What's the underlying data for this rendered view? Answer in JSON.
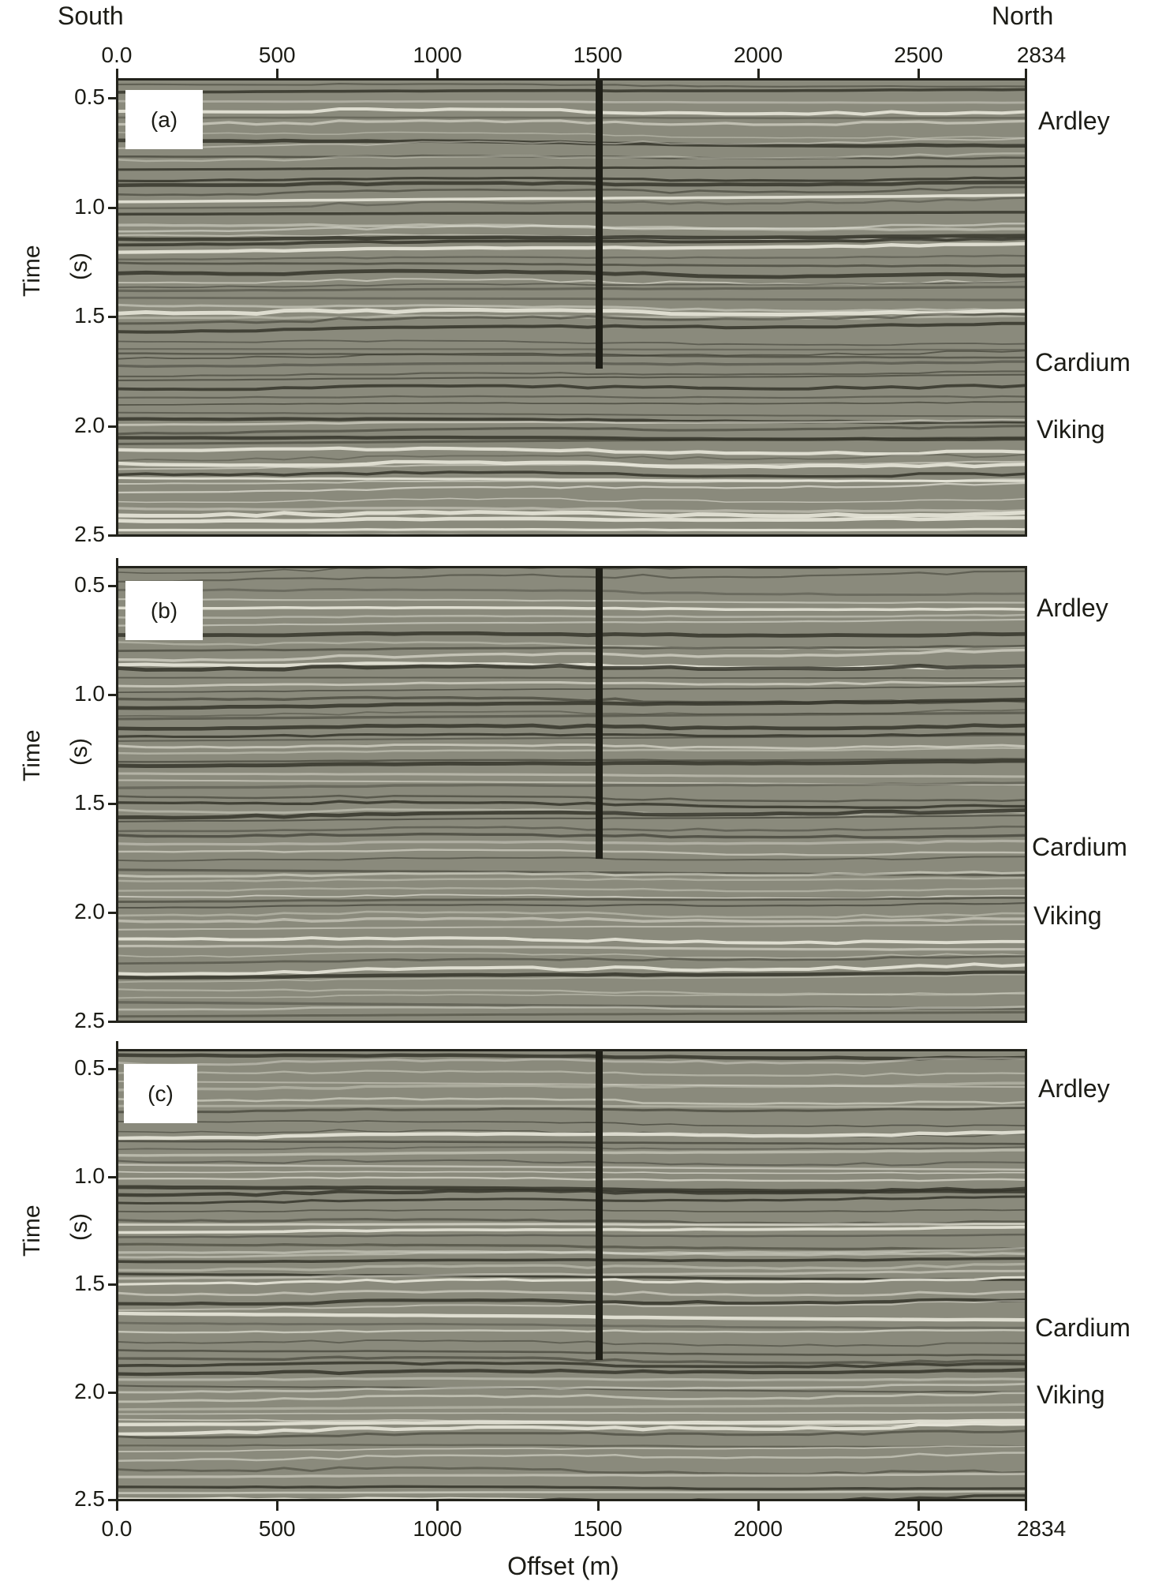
{
  "figure": {
    "direction_left": "South",
    "direction_right": "North",
    "x_axis_title": "Offset (m)",
    "y_axis_title_word": "Time",
    "y_axis_title_unit": "(s)",
    "x_ticks": [
      "0.0",
      "500",
      "1000",
      "1500",
      "2000",
      "2500",
      "2834"
    ],
    "y_ticks": [
      "0.5",
      "1.0",
      "1.5",
      "2.0",
      "2.5"
    ],
    "colors": {
      "seismic_mid": "#8a8a7c",
      "seismic_dark": "#35352b",
      "seismic_light": "#ecebdf",
      "frame": "#23231c",
      "well_line": "#1e1e17"
    }
  },
  "panels": [
    {
      "tag": "(a)",
      "horizons": [
        "Ardley",
        "Cardium",
        "Viking"
      ]
    },
    {
      "tag": "(b)",
      "horizons": [
        "Ardley",
        "Cardium",
        "Viking"
      ]
    },
    {
      "tag": "(c)",
      "horizons": [
        "Ardley",
        "Cardium",
        "Viking"
      ]
    }
  ],
  "chart_data": [
    {
      "type": "heatmap",
      "title": "(a)",
      "description": "Seismic section (variable-density gray), offset vs two-way time",
      "xlabel": "Offset (m)",
      "ylabel": "Time (s)",
      "x_ticks": [
        0,
        500,
        1000,
        1500,
        2000,
        2500,
        2834
      ],
      "y_ticks": [
        0.5,
        1.0,
        1.5,
        2.0,
        2.5
      ],
      "xlim": [
        0,
        2834
      ],
      "ylim": [
        2.5,
        0.45
      ],
      "annotations": [
        {
          "type": "vertical_line",
          "x": 1500,
          "y_from": 0.45,
          "y_to": 1.73,
          "label": "well"
        },
        {
          "type": "horizon_label",
          "text": "Ardley",
          "time": 0.62
        },
        {
          "type": "horizon_label",
          "text": "Cardium",
          "time": 1.73
        },
        {
          "type": "horizon_label",
          "text": "Viking",
          "time": 2.01
        }
      ],
      "top_labels": {
        "left": "South",
        "right": "North"
      }
    },
    {
      "type": "heatmap",
      "title": "(b)",
      "xlabel": "Offset (m)",
      "ylabel": "Time (s)",
      "x_ticks": [
        0,
        500,
        1000,
        1500,
        2000,
        2500,
        2834
      ],
      "y_ticks": [
        0.5,
        1.0,
        1.5,
        2.0,
        2.5
      ],
      "xlim": [
        0,
        2834
      ],
      "ylim": [
        2.5,
        0.45
      ],
      "annotations": [
        {
          "type": "vertical_line",
          "x": 1500,
          "y_from": 0.45,
          "y_to": 1.75,
          "label": "well"
        },
        {
          "type": "horizon_label",
          "text": "Ardley",
          "time": 0.62
        },
        {
          "type": "horizon_label",
          "text": "Cardium",
          "time": 1.72
        },
        {
          "type": "horizon_label",
          "text": "Viking",
          "time": 2.0
        }
      ]
    },
    {
      "type": "heatmap",
      "title": "(c)",
      "xlabel": "Offset (m)",
      "ylabel": "Time (s)",
      "x_ticks": [
        0,
        500,
        1000,
        1500,
        2000,
        2500,
        2834
      ],
      "y_ticks": [
        0.5,
        1.0,
        1.5,
        2.0,
        2.5
      ],
      "xlim": [
        0,
        2834
      ],
      "ylim": [
        2.5,
        0.45
      ],
      "annotations": [
        {
          "type": "vertical_line",
          "x": 1500,
          "y_from": 0.45,
          "y_to": 1.84,
          "label": "well"
        },
        {
          "type": "horizon_label",
          "text": "Ardley",
          "time": 0.62
        },
        {
          "type": "horizon_label",
          "text": "Cardium",
          "time": 1.73
        },
        {
          "type": "horizon_label",
          "text": "Viking",
          "time": 2.03
        }
      ]
    }
  ]
}
